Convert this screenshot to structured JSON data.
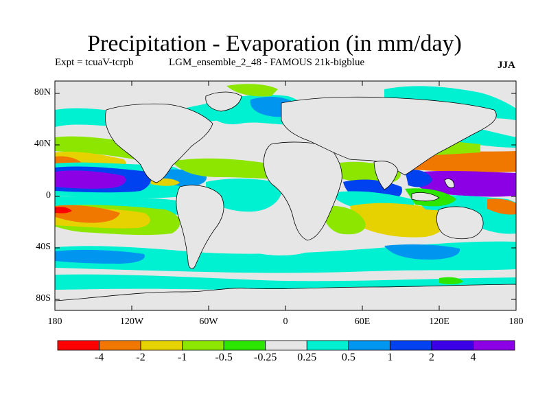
{
  "title": "Precipitation - Evaporation (in mm/day)",
  "subtitle_left": "Expt = tcuaV-tcrpb",
  "subtitle_mid": "LGM_ensemble_2_48 - FAMOUS 21k-bigblue",
  "season": "JJA",
  "lat_labels": [
    "80N",
    "40N",
    "0",
    "40S",
    "80S"
  ],
  "lon_labels": [
    "180",
    "120W",
    "60W",
    "0",
    "60E",
    "120E",
    "180"
  ],
  "colorbar": {
    "colors": [
      "#ff0000",
      "#f07800",
      "#e6d200",
      "#8ce600",
      "#2de600",
      "#e6e6e6",
      "#00f0d2",
      "#0096f0",
      "#0041f0",
      "#3c00e6",
      "#8c00e6"
    ],
    "labels": [
      "-4",
      "-2",
      "-1",
      "-0.5",
      "-0.25",
      "0.25",
      "0.5",
      "1",
      "2",
      "4"
    ]
  },
  "colors": {
    "background": "#e6e6e6",
    "coastline": "#000000"
  }
}
